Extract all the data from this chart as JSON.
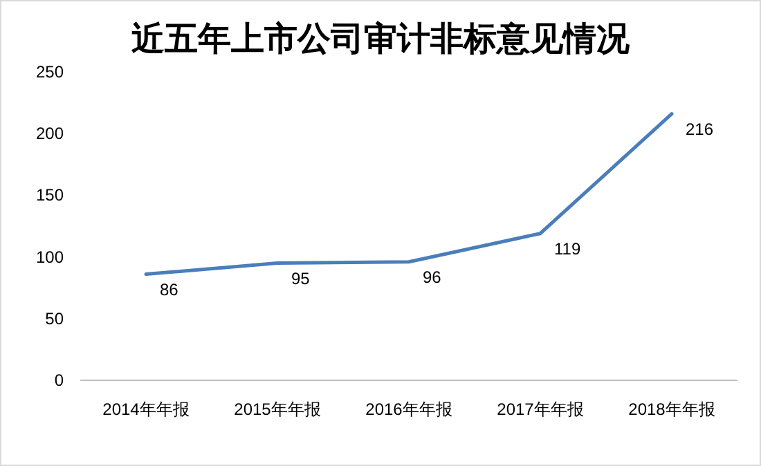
{
  "chart_data": {
    "type": "line",
    "title": "近五年上市公司审计非标意见情况",
    "categories": [
      "2014年年报",
      "2015年年报",
      "2016年年报",
      "2017年年报",
      "2018年年报"
    ],
    "series": [
      {
        "color": "#4a7ebb",
        "values": [
          86,
          95,
          96,
          119,
          216
        ]
      }
    ],
    "ylim": [
      0,
      250
    ],
    "yticks": [
      0,
      50,
      100,
      150,
      200,
      250
    ],
    "data_labels": true,
    "marker": "none",
    "line_style": "solid"
  }
}
